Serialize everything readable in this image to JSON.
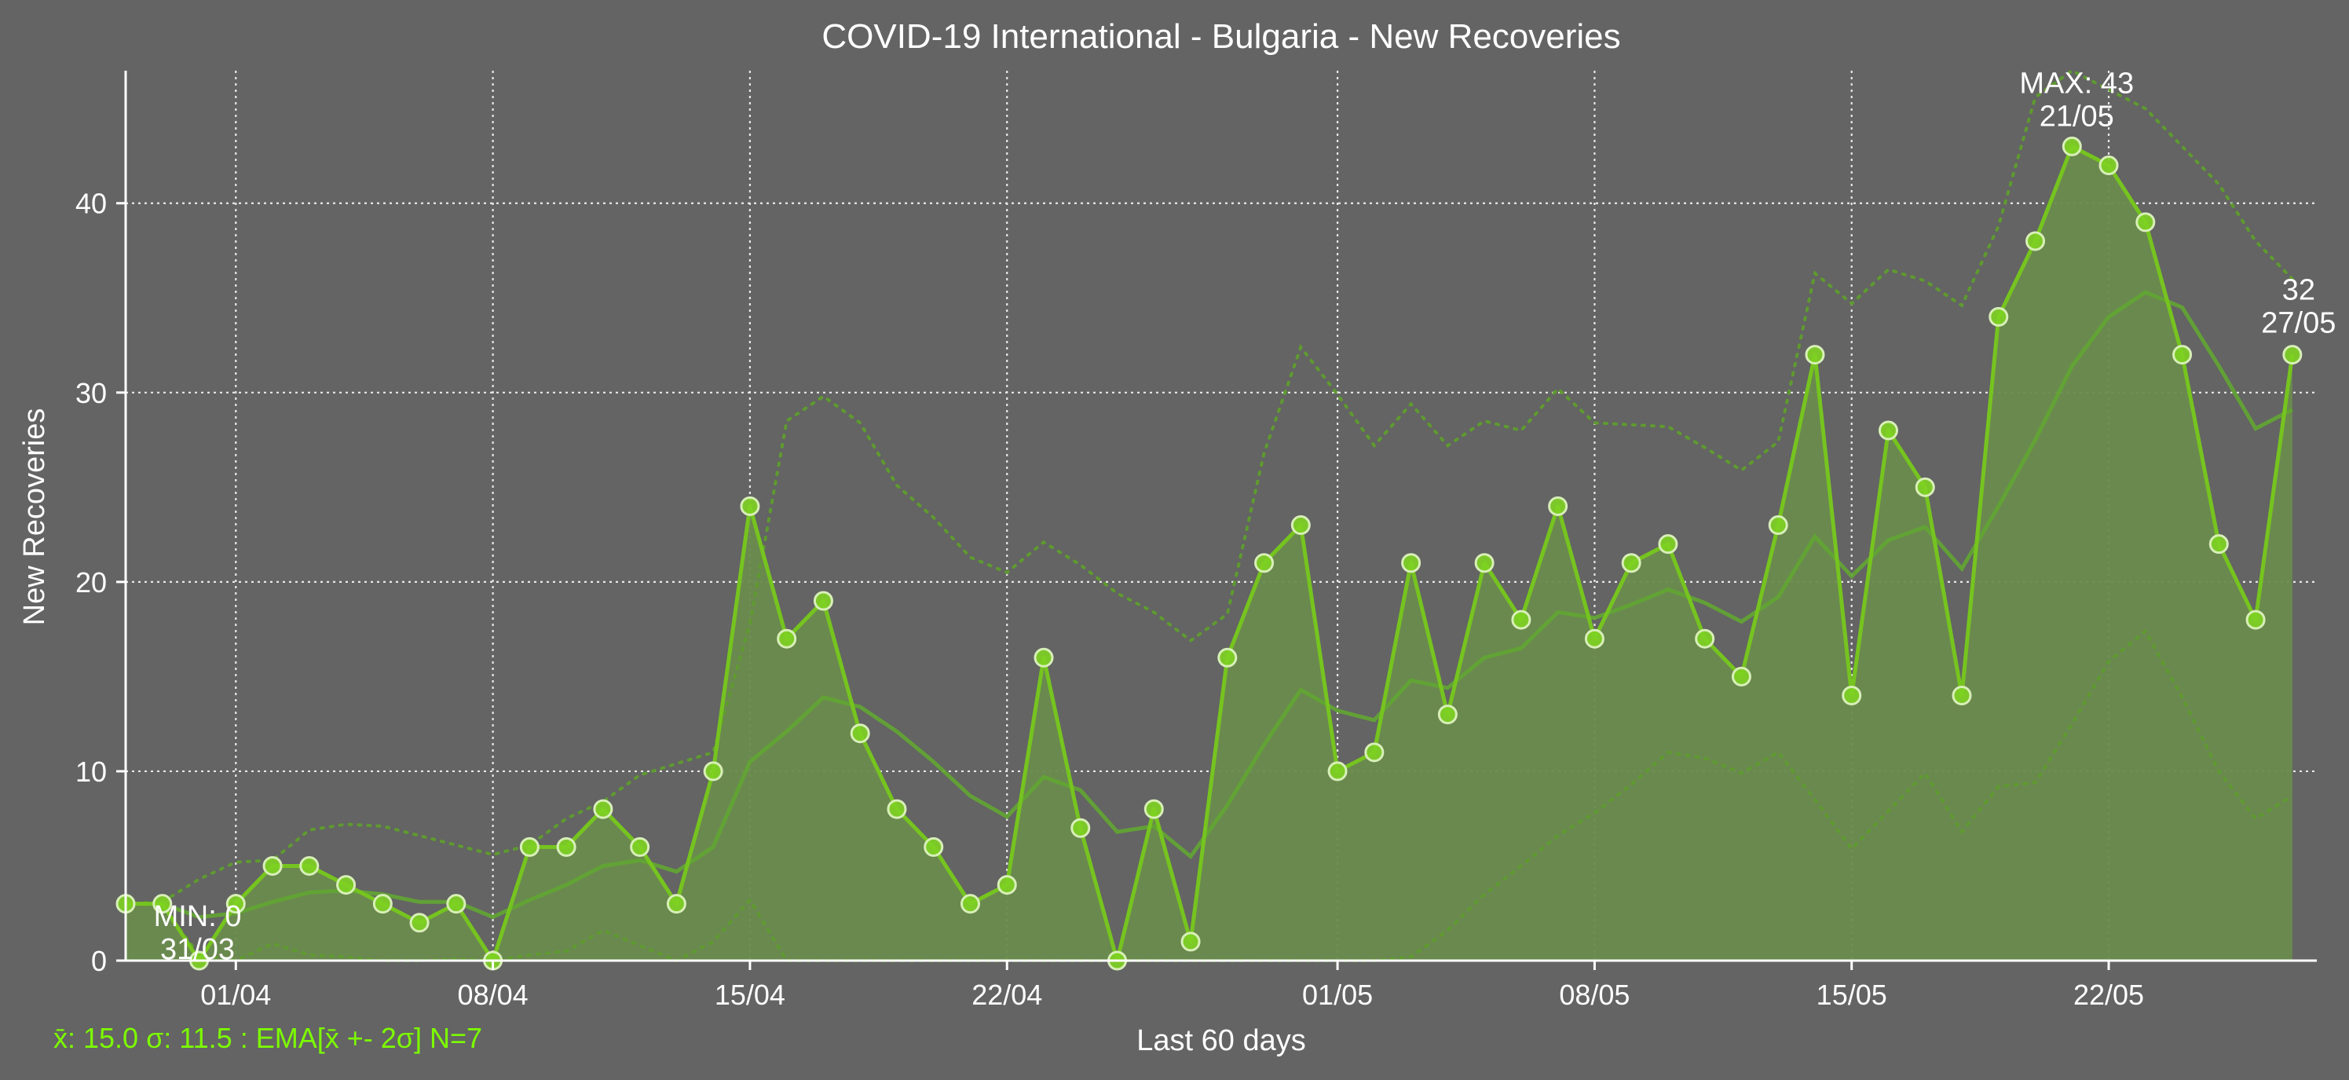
{
  "colors": {
    "background": "#636463",
    "line": "#76c41f",
    "fill": "#6a8b4e",
    "ema": "#62a632",
    "band": "#5f9a30",
    "marker_fill": "#7ed321",
    "marker_edge": "#d8efb8",
    "grid": "#e8e8e8",
    "axis": "#ffffff",
    "text": "#ffffff",
    "stats_text": "#7cfc00"
  },
  "chart_data": {
    "type": "line",
    "title": "COVID-19 International - Bulgaria - New Recoveries",
    "xlabel": "Last 60 days",
    "ylabel": "New Recoveries",
    "ylim": [
      0,
      47
    ],
    "yticks": [
      0,
      10,
      20,
      30,
      40
    ],
    "grid": true,
    "x_ticks": [
      "01/04",
      "08/04",
      "15/04",
      "22/04",
      "01/05",
      "08/05",
      "15/05",
      "22/05"
    ],
    "x_tick_dates": [
      "01/04",
      "08/04",
      "15/04",
      "22/04",
      "01/05",
      "08/05",
      "15/05",
      "22/05"
    ],
    "x": [
      "29/03",
      "30/03",
      "31/03",
      "01/04",
      "02/04",
      "03/04",
      "04/04",
      "05/04",
      "06/04",
      "07/04",
      "08/04",
      "09/04",
      "10/04",
      "11/04",
      "12/04",
      "13/04",
      "14/04",
      "15/04",
      "16/04",
      "17/04",
      "18/04",
      "19/04",
      "20/04",
      "21/04",
      "22/04",
      "23/04",
      "24/04",
      "25/04",
      "26/04",
      "27/04",
      "28/04",
      "29/04",
      "30/04",
      "01/05",
      "02/05",
      "03/05",
      "04/05",
      "05/05",
      "06/05",
      "07/05",
      "08/05",
      "09/05",
      "10/05",
      "11/05",
      "12/05",
      "13/05",
      "14/05",
      "15/05",
      "16/05",
      "17/05",
      "18/05",
      "19/05",
      "20/05",
      "21/05",
      "22/05",
      "23/05",
      "24/05",
      "25/05",
      "26/05",
      "27/05"
    ],
    "series": [
      {
        "name": "",
        "values": [
          3,
          3,
          0,
          3,
          5,
          5,
          4,
          3,
          2,
          3,
          0,
          6,
          6,
          8,
          6,
          3,
          10,
          24,
          17,
          19,
          12,
          8,
          6,
          3,
          4,
          16,
          7,
          0,
          8,
          1,
          16,
          21,
          23,
          10,
          11,
          21,
          13,
          21,
          18,
          24,
          17,
          21,
          22,
          17,
          15,
          23,
          32,
          14,
          28,
          25,
          14,
          34,
          38,
          43,
          42,
          39,
          32,
          22,
          18,
          32
        ]
      }
    ],
    "ema": [
      3,
      3,
      2.3,
      2.5,
      3.1,
      3.6,
      3.7,
      3.5,
      3.1,
      3.1,
      2.3,
      3.2,
      4.0,
      5.0,
      5.3,
      4.7,
      6.0,
      10.5,
      12.1,
      13.9,
      13.4,
      12.1,
      10.5,
      8.7,
      7.6,
      9.7,
      9.0,
      6.8,
      7.1,
      5.5,
      8.2,
      11.4,
      14.3,
      13.2,
      12.7,
      14.8,
      14.4,
      16.0,
      16.5,
      18.4,
      18.1,
      18.8,
      19.6,
      18.9,
      17.9,
      19.2,
      22.4,
      20.3,
      22.2,
      22.9,
      20.7,
      24.0,
      27.5,
      31.4,
      34.0,
      35.3,
      34.5,
      31.4,
      28.1,
      29.1
    ],
    "band_upper": [
      3,
      3.1,
      4.3,
      5.2,
      5.3,
      6.9,
      7.2,
      7.1,
      6.6,
      6.1,
      5.6,
      6.1,
      7.5,
      8.4,
      9.8,
      10.4,
      11,
      17.8,
      28.5,
      29.8,
      28.4,
      25.1,
      23.4,
      21.3,
      20.5,
      22.1,
      20.9,
      19.4,
      18.4,
      16.9,
      18.3,
      26.8,
      32.4,
      29.9,
      27.2,
      29.4,
      27.2,
      28.5,
      28.0,
      30.2,
      28.4,
      28.3,
      28.2,
      27.1,
      25.9,
      27.4,
      36.3,
      34.7,
      36.5,
      35.9,
      34.6,
      38.8,
      45.6,
      47,
      46,
      45,
      43,
      41,
      38,
      36
    ],
    "band_lower": [
      3,
      2.9,
      0.3,
      -0.2,
      0.9,
      0.3,
      0.2,
      -0.1,
      -0.4,
      0.1,
      -1.0,
      0.3,
      0.5,
      1.6,
      0.8,
      -1.0,
      1.0,
      3.2,
      -4.3,
      -2.0,
      -1.6,
      -0.9,
      -2.4,
      -3.9,
      -5.3,
      -2.7,
      -2.9,
      -5.8,
      -4.2,
      -5.9,
      -1.9,
      -4.0,
      -3.8,
      -3.5,
      -1.8,
      0.2,
      1.6,
      3.5,
      5.0,
      6.6,
      7.8,
      9.3,
      11.0,
      10.7,
      9.9,
      11.0,
      8.5,
      5.9,
      7.9,
      9.9,
      6.8,
      9.2,
      9.4,
      12.5,
      15.8,
      17.4,
      13.9,
      10.0,
      7.5,
      8.7
    ],
    "annotations": {
      "max": {
        "label": "MAX: 43",
        "date": "21/05",
        "value": 43
      },
      "min": {
        "label": "MIN: 0",
        "date": "31/03",
        "value": 0
      },
      "last": {
        "label": "32",
        "date": "27/05",
        "value": 32
      }
    },
    "stats_text": "x̄: 15.0 σ: 11.5 : EMA[x̄ +- 2σ] N=7"
  }
}
